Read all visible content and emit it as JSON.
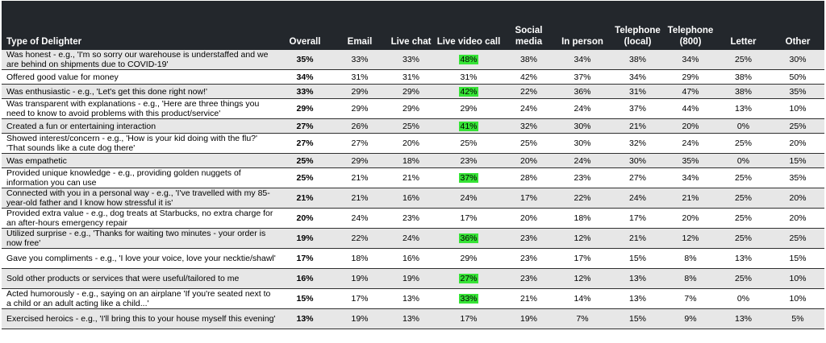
{
  "header": {
    "col0": "Type of Delighter",
    "cols": [
      "Overall",
      "Email",
      "Live chat",
      "Live video call",
      "Social media",
      "In person",
      "Telephone (local)",
      "Telephone (800)",
      "Letter",
      "Other"
    ]
  },
  "highlight_color": "#36e336",
  "rows": [
    {
      "label": "Was honest - e.g., 'I'm so sorry our warehouse is understaffed and we are behind on shipments due to COVID-19'",
      "values": [
        "35%",
        "33%",
        "33%",
        "48%",
        "38%",
        "34%",
        "38%",
        "34%",
        "25%",
        "30%"
      ],
      "highlight": 3
    },
    {
      "label": "Offered good value for money",
      "values": [
        "34%",
        "31%",
        "31%",
        "31%",
        "42%",
        "37%",
        "34%",
        "29%",
        "38%",
        "50%"
      ],
      "highlight": -1
    },
    {
      "label": "Was enthusiastic - e.g., 'Let's get this done right now!'",
      "values": [
        "33%",
        "29%",
        "29%",
        "42%",
        "22%",
        "36%",
        "31%",
        "47%",
        "38%",
        "35%"
      ],
      "highlight": 3
    },
    {
      "label": "Was transparent with explanations - e.g., 'Here are three things you need to know to avoid problems with this product/service'",
      "values": [
        "29%",
        "29%",
        "29%",
        "29%",
        "24%",
        "24%",
        "37%",
        "44%",
        "13%",
        "10%"
      ],
      "highlight": -1
    },
    {
      "label": "Created a fun or entertaining interaction",
      "values": [
        "27%",
        "26%",
        "25%",
        "41%",
        "32%",
        "30%",
        "21%",
        "20%",
        "0%",
        "25%"
      ],
      "highlight": 3
    },
    {
      "label": "Showed interest/concern - e.g., 'How is your kid doing with the flu?' 'That sounds like a cute dog there'",
      "values": [
        "27%",
        "27%",
        "20%",
        "25%",
        "25%",
        "30%",
        "32%",
        "24%",
        "25%",
        "20%"
      ],
      "highlight": -1
    },
    {
      "label": "Was empathetic",
      "values": [
        "25%",
        "29%",
        "18%",
        "23%",
        "20%",
        "24%",
        "30%",
        "35%",
        "0%",
        "15%"
      ],
      "highlight": -1
    },
    {
      "label": "Provided unique knowledge - e.g., providing golden nuggets of information you can use",
      "values": [
        "25%",
        "21%",
        "21%",
        "37%",
        "28%",
        "23%",
        "27%",
        "34%",
        "25%",
        "35%"
      ],
      "highlight": 3
    },
    {
      "label": "Connected with you in a personal way - e.g., 'I've travelled with my 85-year-old father and I know how stressful it is'",
      "values": [
        "21%",
        "21%",
        "16%",
        "24%",
        "17%",
        "22%",
        "24%",
        "21%",
        "25%",
        "20%"
      ],
      "highlight": -1
    },
    {
      "label": "Provided extra value - e.g., dog treats at Starbucks, no extra charge for an after-hours emergency repair",
      "values": [
        "20%",
        "24%",
        "23%",
        "17%",
        "20%",
        "18%",
        "17%",
        "20%",
        "25%",
        "20%"
      ],
      "highlight": -1
    },
    {
      "label": "Utilized surprise - e.g., 'Thanks for waiting two minutes - your order is now free'",
      "values": [
        "19%",
        "22%",
        "24%",
        "36%",
        "23%",
        "12%",
        "21%",
        "12%",
        "25%",
        "25%"
      ],
      "highlight": 3
    },
    {
      "label": "Gave you compliments - e.g., 'I love your voice, love your necktie/shawl'",
      "values": [
        "17%",
        "18%",
        "16%",
        "29%",
        "23%",
        "17%",
        "15%",
        "8%",
        "13%",
        "15%"
      ],
      "highlight": -1
    },
    {
      "label": "Sold other products or services that were useful/tailored to me",
      "values": [
        "16%",
        "19%",
        "19%",
        "27%",
        "23%",
        "12%",
        "13%",
        "8%",
        "25%",
        "10%"
      ],
      "highlight": 3
    },
    {
      "label": "Acted humorously - e.g., saying on an airplane 'If you're seated next to a child or an adult acting like a child...'",
      "values": [
        "15%",
        "17%",
        "13%",
        "33%",
        "21%",
        "14%",
        "13%",
        "7%",
        "0%",
        "10%"
      ],
      "highlight": 3
    },
    {
      "label": "Exercised heroics - e.g., 'I'll bring this to your house myself this evening'",
      "values": [
        "13%",
        "19%",
        "13%",
        "17%",
        "19%",
        "7%",
        "15%",
        "9%",
        "13%",
        "5%"
      ],
      "highlight": -1
    }
  ]
}
